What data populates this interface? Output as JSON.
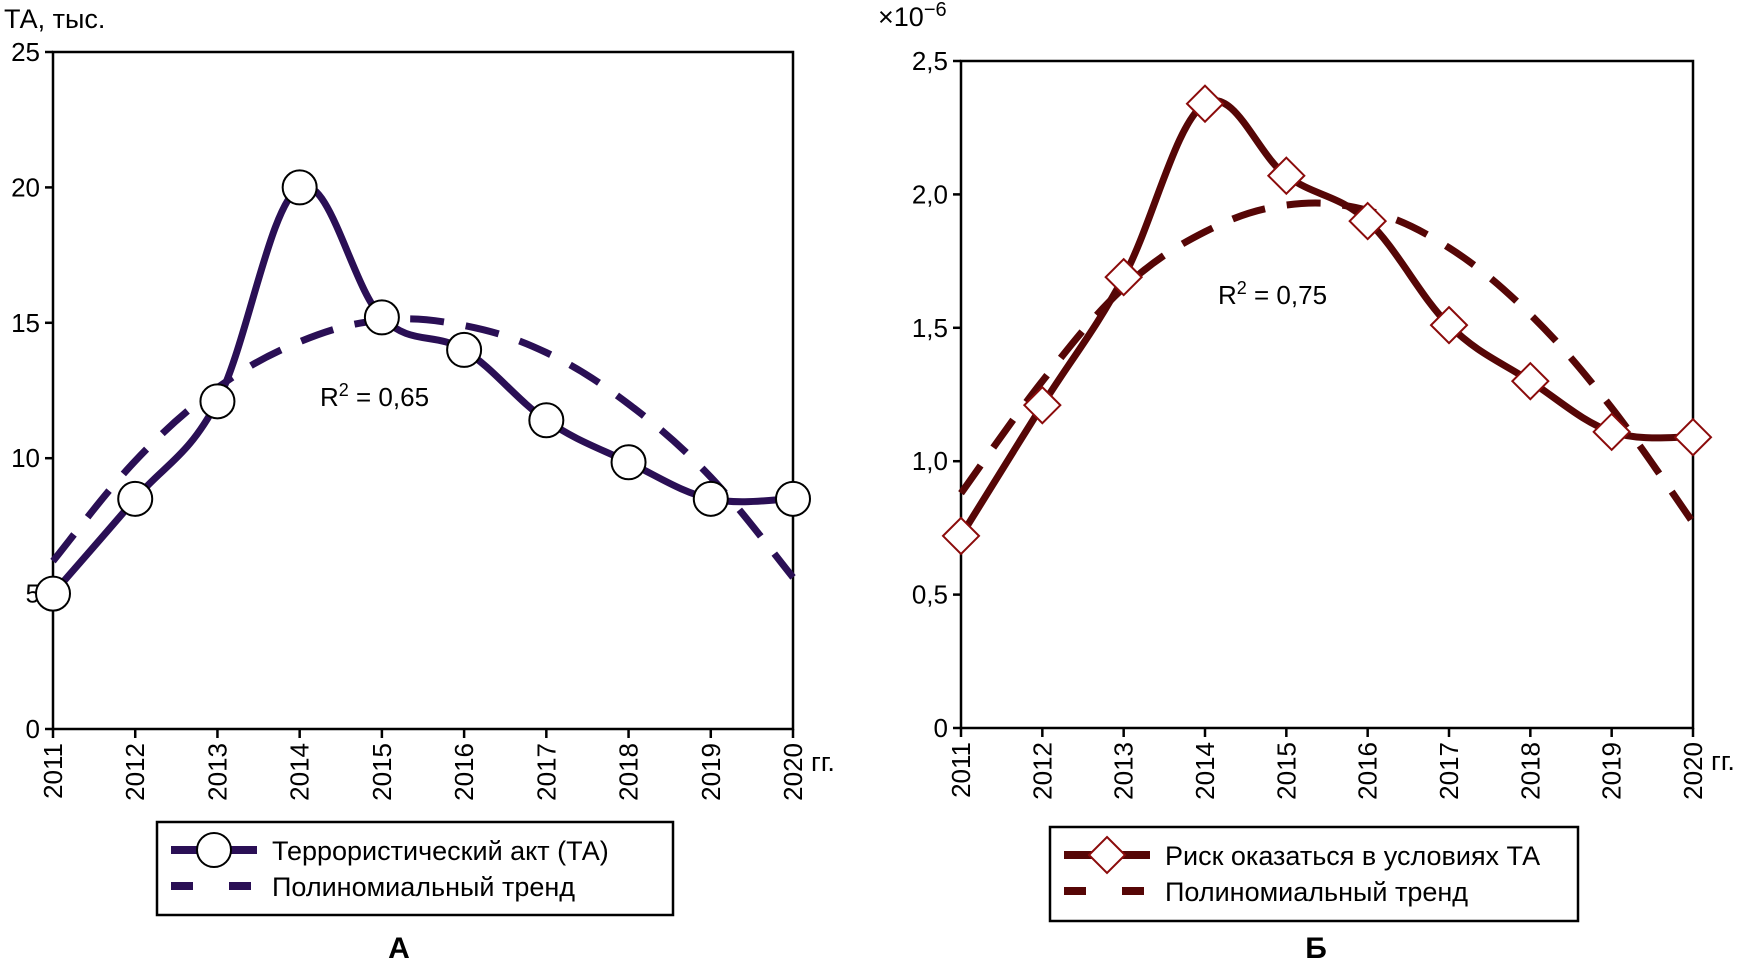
{
  "chart_data": [
    {
      "id": "A",
      "type": "line",
      "panel_label": "А",
      "ylabel": "ТА, тыс.",
      "xlabel": "гг.",
      "ylim": [
        0,
        25
      ],
      "yticks": [
        0,
        5,
        10,
        15,
        20,
        25
      ],
      "ytick_labels": [
        "0",
        "5",
        "10",
        "15",
        "20",
        "25"
      ],
      "categories": [
        "2011",
        "2012",
        "2013",
        "2014",
        "2015",
        "2016",
        "2017",
        "2018",
        "2019",
        "2020"
      ],
      "series": [
        {
          "name": "Террористический акт (ТА)",
          "marker": "circle",
          "style": "solid",
          "values": [
            5.0,
            8.5,
            12.1,
            20.0,
            15.2,
            14.0,
            11.4,
            9.85,
            8.5,
            8.5
          ]
        },
        {
          "name": "Полиномиальный тренд",
          "marker": "none",
          "style": "dashed",
          "values": [
            6.2,
            9.9,
            12.6,
            14.3,
            15.1,
            14.9,
            13.9,
            12.0,
            9.3,
            5.6
          ]
        }
      ],
      "annotation": {
        "text_prefix": "R",
        "superscript": "2",
        "text_suffix": " = 0,65"
      },
      "legend_placement": "bottom",
      "grid": false,
      "colors": {
        "line": "#2a0f55",
        "marker_fill": "#ffffff",
        "marker_stroke": "#000000"
      }
    },
    {
      "id": "B",
      "type": "line",
      "panel_label": "Б",
      "ylabel": "×10",
      "ylabel_exponent": "−6",
      "xlabel": "гг.",
      "ylim": [
        0,
        2.5
      ],
      "yticks": [
        0,
        0.5,
        1.0,
        1.5,
        2.0,
        2.5
      ],
      "ytick_labels": [
        "0",
        "0,5",
        "1,0",
        "1,5",
        "2,0",
        "2,5"
      ],
      "categories": [
        "2011",
        "2012",
        "2013",
        "2014",
        "2015",
        "2016",
        "2017",
        "2018",
        "2019",
        "2020"
      ],
      "series": [
        {
          "name": "Риск оказаться в условиях ТА",
          "marker": "diamond",
          "style": "solid",
          "values": [
            0.72,
            1.21,
            1.69,
            2.34,
            2.07,
            1.9,
            1.51,
            1.3,
            1.11,
            1.09
          ]
        },
        {
          "name": "Полиномиальный тренд",
          "marker": "none",
          "style": "dashed",
          "values": [
            0.88,
            1.3,
            1.65,
            1.86,
            1.96,
            1.94,
            1.8,
            1.55,
            1.2,
            0.77
          ]
        }
      ],
      "annotation": {
        "text_prefix": "R",
        "superscript": "2",
        "text_suffix": " = 0,75"
      },
      "legend_placement": "bottom",
      "grid": false,
      "colors": {
        "line": "#560606",
        "marker_fill": "#ffffff",
        "marker_stroke": "#8b0b0b"
      }
    }
  ]
}
